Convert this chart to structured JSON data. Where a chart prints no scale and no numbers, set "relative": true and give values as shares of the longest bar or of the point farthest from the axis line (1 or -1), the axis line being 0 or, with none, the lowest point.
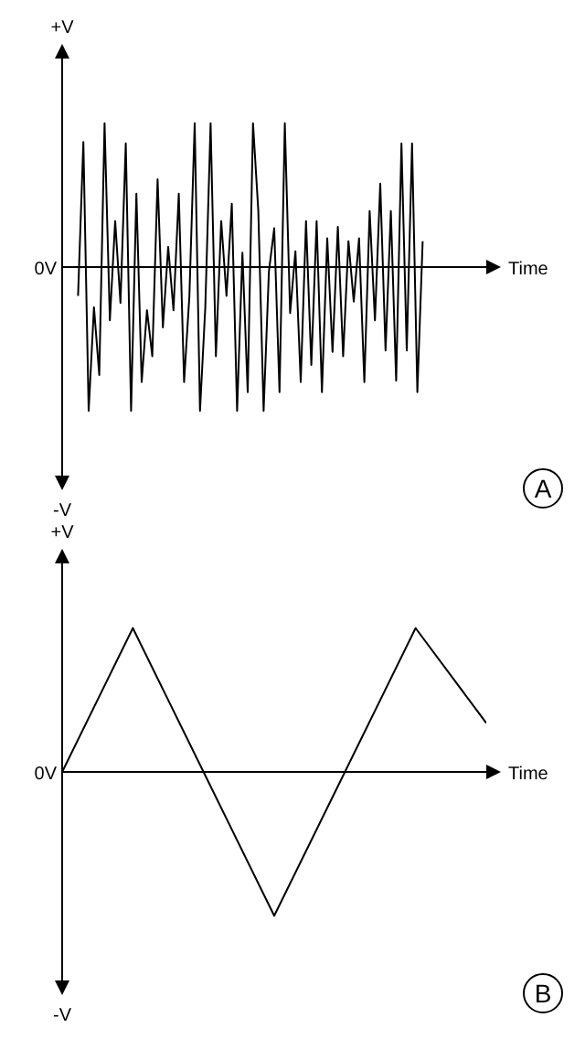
{
  "chart_data": [
    {
      "type": "line",
      "xlabel": "Time",
      "annotations": [
        "+V",
        "0V",
        "-V",
        "A"
      ],
      "relative": true,
      "marker": "none",
      "grid": false,
      "legend": false,
      "color": "#000000",
      "categories": [
        null,
        null,
        null,
        null,
        null,
        null,
        null,
        null,
        null,
        null,
        null,
        null,
        null,
        null,
        null,
        null,
        null,
        null,
        null,
        null,
        null,
        null,
        null,
        null,
        null,
        null,
        null,
        null,
        null,
        null,
        null,
        null,
        null,
        null,
        null,
        null,
        null,
        null,
        null,
        null,
        null,
        null,
        null,
        null,
        null,
        null,
        null,
        null,
        null,
        null,
        null,
        null,
        null,
        null,
        null,
        null,
        null,
        null,
        null,
        null,
        null,
        null,
        null,
        null,
        null,
        null,
        null,
        null,
        null,
        null,
        null,
        null,
        null,
        null,
        null,
        null,
        null,
        null,
        null,
        null,
        null
      ],
      "values": [
        null,
        null,
        null,
        -0.2,
        0.87,
        -1,
        -0.28,
        -0.75,
        1,
        -0.37,
        0.32,
        -0.25,
        0.86,
        -1,
        0.51,
        -0.8,
        -0.3,
        -0.62,
        0.61,
        -0.42,
        0.14,
        -0.3,
        0.51,
        -0.8,
        -0.2,
        1,
        -1,
        -0.28,
        1,
        -0.62,
        0.32,
        -0.2,
        0.44,
        -1,
        0.1,
        -0.87,
        1,
        0.39,
        -1,
        -0.03,
        0.27,
        -0.87,
        1,
        -0.32,
        0.11,
        -0.8,
        0.32,
        -0.68,
        0.32,
        -0.87,
        0.2,
        -0.59,
        0.28,
        -0.62,
        0.18,
        -0.24,
        0.2,
        -0.8,
        0.39,
        -0.37,
        0.58,
        -0.58,
        0.39,
        -0.79,
        0.86,
        -0.58,
        0.86,
        -0.87,
        0.18,
        null,
        null,
        null,
        null,
        null,
        null,
        null,
        null,
        null,
        null,
        null,
        null
      ]
    },
    {
      "type": "line",
      "xlabel": "Time",
      "annotations": [
        "+V",
        "0V",
        "-V",
        "B"
      ],
      "relative": true,
      "marker": "none",
      "grid": false,
      "legend": false,
      "color": "#000000",
      "categories": [
        null,
        null,
        null,
        null,
        null,
        null,
        null
      ],
      "values": [
        0,
        1,
        0,
        -1,
        0,
        1,
        0.34
      ]
    }
  ]
}
